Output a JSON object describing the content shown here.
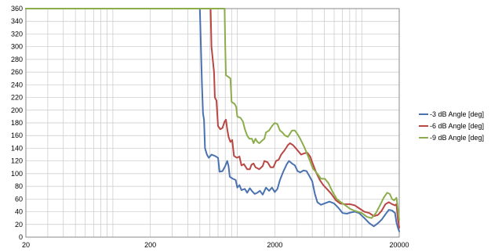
{
  "chart_data": {
    "type": "line",
    "title": "",
    "xlabel": "",
    "ylabel": "",
    "xscale": "log",
    "xlim": [
      20,
      20000
    ],
    "ylim": [
      0,
      360
    ],
    "grid": true,
    "legend_position": "right",
    "x_ticks": [
      "20",
      "200",
      "2000",
      "20000"
    ],
    "y_ticks": [
      "0",
      "20",
      "40",
      "60",
      "80",
      "100",
      "120",
      "140",
      "160",
      "180",
      "200",
      "220",
      "240",
      "260",
      "280",
      "300",
      "320",
      "340",
      "360"
    ],
    "series": [
      {
        "name": "-3 dB Angle [deg]",
        "color": "#4a72b0",
        "points": [
          [
            20,
            360
          ],
          [
            500,
            360
          ],
          [
            510,
            300
          ],
          [
            520,
            240
          ],
          [
            530,
            195
          ],
          [
            540,
            185
          ],
          [
            550,
            140
          ],
          [
            570,
            130
          ],
          [
            590,
            125
          ],
          [
            620,
            130
          ],
          [
            660,
            128
          ],
          [
            700,
            125
          ],
          [
            720,
            103
          ],
          [
            760,
            104
          ],
          [
            800,
            112
          ],
          [
            830,
            120
          ],
          [
            850,
            112
          ],
          [
            870,
            95
          ],
          [
            920,
            92
          ],
          [
            970,
            90
          ],
          [
            1000,
            78
          ],
          [
            1040,
            82
          ],
          [
            1080,
            74
          ],
          [
            1150,
            76
          ],
          [
            1200,
            70
          ],
          [
            1260,
            77
          ],
          [
            1320,
            72
          ],
          [
            1380,
            68
          ],
          [
            1450,
            70
          ],
          [
            1520,
            73
          ],
          [
            1600,
            67
          ],
          [
            1700,
            78
          ],
          [
            1800,
            73
          ],
          [
            1900,
            78
          ],
          [
            2000,
            71
          ],
          [
            2100,
            76
          ],
          [
            2200,
            90
          ],
          [
            2350,
            104
          ],
          [
            2500,
            115
          ],
          [
            2600,
            120
          ],
          [
            2750,
            116
          ],
          [
            2900,
            113
          ],
          [
            3050,
            104
          ],
          [
            3200,
            102
          ],
          [
            3400,
            105
          ],
          [
            3600,
            104
          ],
          [
            3800,
            96
          ],
          [
            4000,
            88
          ],
          [
            4200,
            68
          ],
          [
            4400,
            55
          ],
          [
            4700,
            51
          ],
          [
            5000,
            53
          ],
          [
            5500,
            56
          ],
          [
            6000,
            53
          ],
          [
            6500,
            46
          ],
          [
            7000,
            38
          ],
          [
            7600,
            37
          ],
          [
            8200,
            39
          ],
          [
            8800,
            40
          ],
          [
            9500,
            38
          ],
          [
            10500,
            30
          ],
          [
            11500,
            22
          ],
          [
            12500,
            17
          ],
          [
            13500,
            22
          ],
          [
            14500,
            28
          ],
          [
            15500,
            36
          ],
          [
            16500,
            43
          ],
          [
            17500,
            42
          ],
          [
            18500,
            38
          ],
          [
            19000,
            23
          ],
          [
            19500,
            15
          ],
          [
            20000,
            9
          ]
        ]
      },
      {
        "name": "-6 dB Angle [deg]",
        "color": "#b94743",
        "points": [
          [
            20,
            360
          ],
          [
            610,
            360
          ],
          [
            620,
            300
          ],
          [
            650,
            260
          ],
          [
            660,
            220
          ],
          [
            680,
            215
          ],
          [
            700,
            175
          ],
          [
            730,
            170
          ],
          [
            760,
            172
          ],
          [
            790,
            182
          ],
          [
            810,
            185
          ],
          [
            830,
            170
          ],
          [
            850,
            158
          ],
          [
            880,
            150
          ],
          [
            910,
            153
          ],
          [
            940,
            128
          ],
          [
            990,
            125
          ],
          [
            1040,
            127
          ],
          [
            1080,
            113
          ],
          [
            1130,
            115
          ],
          [
            1200,
            107
          ],
          [
            1260,
            107
          ],
          [
            1300,
            114
          ],
          [
            1350,
            116
          ],
          [
            1400,
            110
          ],
          [
            1500,
            107
          ],
          [
            1600,
            112
          ],
          [
            1650,
            120
          ],
          [
            1750,
            118
          ],
          [
            1850,
            110
          ],
          [
            1950,
            110
          ],
          [
            2050,
            120
          ],
          [
            2150,
            122
          ],
          [
            2250,
            130
          ],
          [
            2400,
            137
          ],
          [
            2550,
            145
          ],
          [
            2650,
            148
          ],
          [
            2800,
            145
          ],
          [
            2950,
            140
          ],
          [
            3100,
            135
          ],
          [
            3250,
            130
          ],
          [
            3450,
            132
          ],
          [
            3650,
            133
          ],
          [
            3850,
            127
          ],
          [
            4050,
            115
          ],
          [
            4300,
            102
          ],
          [
            4600,
            90
          ],
          [
            4900,
            82
          ],
          [
            5300,
            75
          ],
          [
            5700,
            68
          ],
          [
            6200,
            58
          ],
          [
            6700,
            53
          ],
          [
            7300,
            52
          ],
          [
            8000,
            52
          ],
          [
            8800,
            50
          ],
          [
            9600,
            45
          ],
          [
            10500,
            40
          ],
          [
            11500,
            38
          ],
          [
            12500,
            33
          ],
          [
            13500,
            35
          ],
          [
            14500,
            42
          ],
          [
            15500,
            52
          ],
          [
            16500,
            55
          ],
          [
            17500,
            52
          ],
          [
            18500,
            50
          ],
          [
            19000,
            52
          ],
          [
            19500,
            28
          ],
          [
            20000,
            15
          ]
        ]
      },
      {
        "name": "-9 dB Angle [deg]",
        "color": "#8dad4c",
        "points": [
          [
            20,
            360
          ],
          [
            790,
            360
          ],
          [
            800,
            300
          ],
          [
            810,
            255
          ],
          [
            840,
            253
          ],
          [
            880,
            250
          ],
          [
            900,
            213
          ],
          [
            950,
            210
          ],
          [
            980,
            205
          ],
          [
            1000,
            190
          ],
          [
            1060,
            188
          ],
          [
            1110,
            182
          ],
          [
            1150,
            170
          ],
          [
            1200,
            160
          ],
          [
            1250,
            155
          ],
          [
            1310,
            155
          ],
          [
            1350,
            148
          ],
          [
            1400,
            155
          ],
          [
            1450,
            150
          ],
          [
            1500,
            148
          ],
          [
            1580,
            152
          ],
          [
            1650,
            155
          ],
          [
            1700,
            165
          ],
          [
            1800,
            168
          ],
          [
            1900,
            175
          ],
          [
            2000,
            180
          ],
          [
            2100,
            178
          ],
          [
            2200,
            168
          ],
          [
            2300,
            165
          ],
          [
            2420,
            160
          ],
          [
            2550,
            158
          ],
          [
            2650,
            163
          ],
          [
            2750,
            168
          ],
          [
            2900,
            168
          ],
          [
            3050,
            162
          ],
          [
            3200,
            155
          ],
          [
            3450,
            142
          ],
          [
            3750,
            125
          ],
          [
            4050,
            108
          ],
          [
            4400,
            100
          ],
          [
            4700,
            92
          ],
          [
            5050,
            92
          ],
          [
            5400,
            85
          ],
          [
            5800,
            72
          ],
          [
            6300,
            60
          ],
          [
            6800,
            55
          ],
          [
            7400,
            50
          ],
          [
            8000,
            45
          ],
          [
            8600,
            42
          ],
          [
            9300,
            40
          ],
          [
            10000,
            38
          ],
          [
            11000,
            32
          ],
          [
            12000,
            30
          ],
          [
            13000,
            38
          ],
          [
            14000,
            50
          ],
          [
            15000,
            62
          ],
          [
            16000,
            70
          ],
          [
            16800,
            68
          ],
          [
            17500,
            60
          ],
          [
            18200,
            58
          ],
          [
            19000,
            62
          ],
          [
            19500,
            45
          ],
          [
            20000,
            27
          ]
        ]
      }
    ]
  }
}
